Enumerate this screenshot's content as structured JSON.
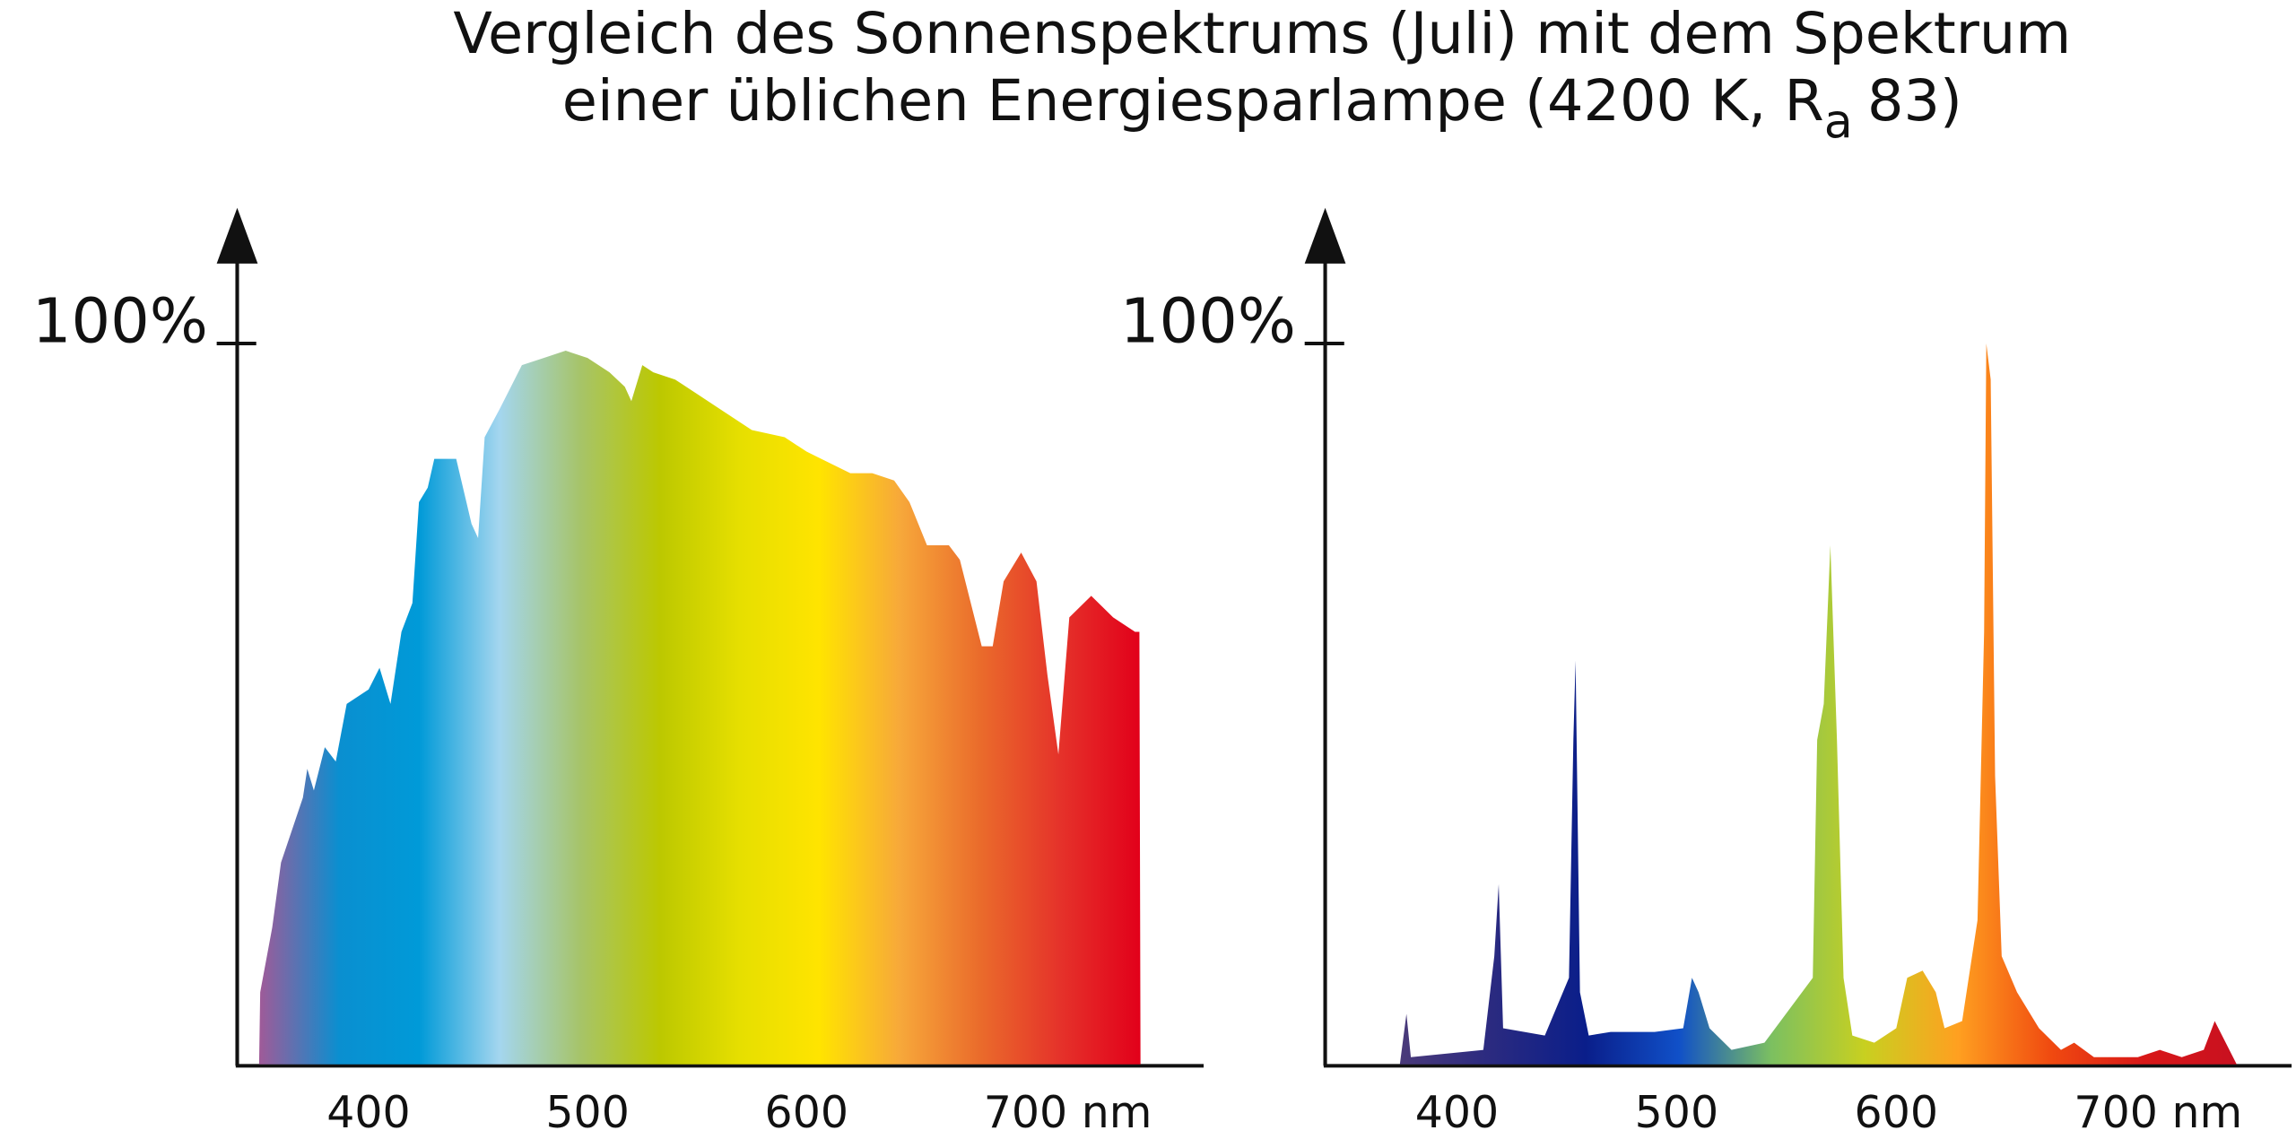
{
  "title": {
    "line1": "Vergleich des Sonnenspektrums (Juli) mit dem Spektrum",
    "line2": "einer üblichen Energiesparlampe (4200 K, R",
    "subscript": "a",
    "line2_end": "83)"
  },
  "chart_data": [
    {
      "type": "area",
      "x": [
        350,
        350.5,
        356,
        360,
        370,
        372,
        375,
        380,
        385,
        390,
        400,
        405,
        410,
        415,
        420,
        423,
        427,
        430,
        440,
        447,
        450,
        453,
        460,
        470,
        480,
        490,
        500,
        510,
        517,
        520,
        525,
        530,
        540,
        550,
        560,
        575,
        590,
        600,
        620,
        630,
        640,
        647,
        655,
        660,
        665,
        670,
        680,
        685,
        690,
        698,
        705,
        710,
        715,
        720,
        730,
        740,
        750,
        752,
        752.5
      ],
      "values": [
        0,
        10,
        19,
        28,
        37,
        41,
        38,
        44,
        42,
        50,
        52,
        55,
        50,
        60,
        64,
        78,
        80,
        84,
        84,
        75,
        73,
        87,
        91,
        97,
        98,
        99,
        98,
        96,
        94,
        92,
        97,
        96,
        95,
        93,
        91,
        88,
        87,
        85,
        82,
        82,
        81,
        78,
        72,
        72,
        72,
        70,
        58,
        58,
        67,
        71,
        67,
        54,
        43,
        62,
        65,
        62,
        60,
        60,
        0
      ],
      "colors": [
        "#a05a98",
        "#0a8fd0",
        "#009ad8",
        "#a4d6ef",
        "#a6c46a",
        "#bcc800",
        "#e6df00",
        "#ffe400",
        "#f7a83a",
        "#ea6b2b",
        "#e5322a",
        "#e2001a"
      ],
      "xlim": [
        340,
        780
      ],
      "ylim": [
        0,
        118
      ],
      "xticks": [
        400,
        500,
        600,
        {
          "value": 700,
          "label": "700 nm"
        }
      ],
      "yticks": [
        {
          "value": 100,
          "label": "100%"
        }
      ]
    },
    {
      "type": "area",
      "x": [
        374,
        377,
        379,
        412,
        417,
        419,
        421,
        440,
        451,
        453,
        454,
        456,
        460,
        470,
        490,
        503,
        507,
        510,
        515,
        525,
        540,
        562,
        564,
        567,
        570,
        573,
        576,
        580,
        590,
        600,
        605,
        612,
        618,
        622,
        630,
        637,
        640,
        641,
        643,
        645,
        648,
        655,
        665,
        675,
        681,
        690,
        710,
        720,
        730,
        740,
        745,
        750,
        755
      ],
      "values": [
        0,
        7,
        1,
        2,
        15,
        25,
        5,
        4,
        12,
        45,
        56,
        10,
        4,
        4.5,
        4.5,
        5,
        12,
        10,
        5,
        2,
        3,
        12,
        45,
        50,
        72,
        45,
        12,
        4,
        3,
        5,
        12,
        13,
        10,
        5,
        6,
        20,
        60,
        100,
        95,
        40,
        15,
        10,
        5,
        2,
        3,
        1,
        1,
        2,
        1,
        2,
        6,
        3,
        0
      ],
      "colors": [
        "#4a3a7a",
        "#2a2a80",
        "#0a1e8a",
        "#1050c8",
        "#7cc060",
        "#c8d020",
        "#ffa020",
        "#f04a10",
        "#d81818",
        "#c81020"
      ],
      "xlim": [
        340,
        780
      ],
      "ylim": [
        0,
        118
      ],
      "xticks": [
        400,
        500,
        600,
        {
          "value": 700,
          "label": "700 nm"
        }
      ],
      "yticks": [
        {
          "value": 100,
          "label": "100%"
        }
      ]
    }
  ]
}
